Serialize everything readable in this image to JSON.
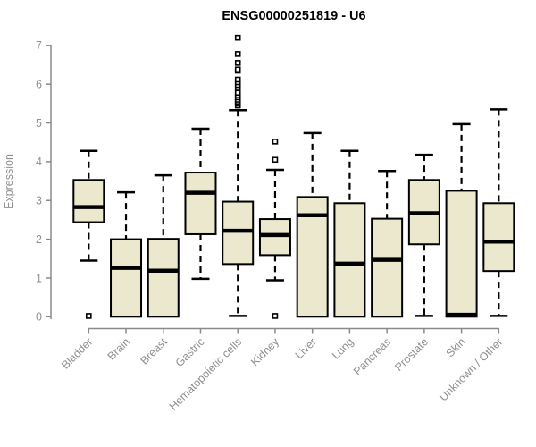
{
  "chart_data": {
    "type": "box",
    "title": "ENSG00000251819 - U6",
    "ylabel": "Expression",
    "xlabel": "",
    "ylim": [
      0,
      7.3
    ],
    "yticks": [
      0,
      1,
      2,
      3,
      4,
      5,
      6,
      7
    ],
    "grid": false,
    "legend_position": "none",
    "colors": {
      "box_fill": "#ece8cd",
      "box_border": "#000000",
      "median": "#000000",
      "whisker": "#000000",
      "outlier": "#000000",
      "axis": "#8a8a8a",
      "text": "#8f8f8f",
      "title": "#000000",
      "background": "#ffffff"
    },
    "categories": [
      "Bladder",
      "Brain",
      "Breast",
      "Gastric",
      "Hematopoietic cells",
      "Kidney",
      "Liver",
      "Lung",
      "Pancreas",
      "Prostate",
      "Skin",
      "Unknown / Other"
    ],
    "boxes": [
      {
        "category": "Bladder",
        "whisker_low": 1.45,
        "q1": 2.44,
        "median": 2.83,
        "q3": 3.53,
        "whisker_high": 4.28,
        "outliers": [
          0.02
        ]
      },
      {
        "category": "Brain",
        "whisker_low": 0,
        "q1": 0,
        "median": 1.26,
        "q3": 2.0,
        "whisker_high": 3.21,
        "outliers": []
      },
      {
        "category": "Breast",
        "whisker_low": 0,
        "q1": 0,
        "median": 1.19,
        "q3": 2.01,
        "whisker_high": 3.65,
        "outliers": []
      },
      {
        "category": "Gastric",
        "whisker_low": 0.98,
        "q1": 2.13,
        "median": 3.2,
        "q3": 3.72,
        "whisker_high": 4.85,
        "outliers": []
      },
      {
        "category": "Hematopoietic cells",
        "whisker_low": 0.02,
        "q1": 1.36,
        "median": 2.22,
        "q3": 2.97,
        "whisker_high": 5.33,
        "outliers": [
          5.45,
          5.5,
          5.55,
          5.6,
          5.66,
          5.72,
          5.78,
          5.9,
          5.98,
          6.05,
          6.12,
          6.35,
          6.38,
          6.55,
          6.78,
          7.2
        ]
      },
      {
        "category": "Kidney",
        "whisker_low": 0.94,
        "q1": 1.59,
        "median": 2.11,
        "q3": 2.52,
        "whisker_high": 3.79,
        "outliers": [
          0.02,
          4.05,
          4.52
        ]
      },
      {
        "category": "Liver",
        "whisker_low": 0,
        "q1": 0,
        "median": 2.62,
        "q3": 3.09,
        "whisker_high": 4.74,
        "outliers": []
      },
      {
        "category": "Lung",
        "whisker_low": 0,
        "q1": 0,
        "median": 1.37,
        "q3": 2.93,
        "whisker_high": 4.28,
        "outliers": []
      },
      {
        "category": "Pancreas",
        "whisker_low": 0,
        "q1": 0,
        "median": 1.47,
        "q3": 2.53,
        "whisker_high": 3.76,
        "outliers": []
      },
      {
        "category": "Prostate",
        "whisker_low": 0.02,
        "q1": 1.87,
        "median": 2.67,
        "q3": 3.53,
        "whisker_high": 4.18,
        "outliers": []
      },
      {
        "category": "Skin",
        "whisker_low": 0,
        "q1": 0,
        "median": 0.05,
        "q3": 3.25,
        "whisker_high": 4.97,
        "outliers": []
      },
      {
        "category": "Unknown / Other",
        "whisker_low": 0.02,
        "q1": 1.18,
        "median": 1.94,
        "q3": 2.93,
        "whisker_high": 5.35,
        "outliers": []
      }
    ]
  }
}
